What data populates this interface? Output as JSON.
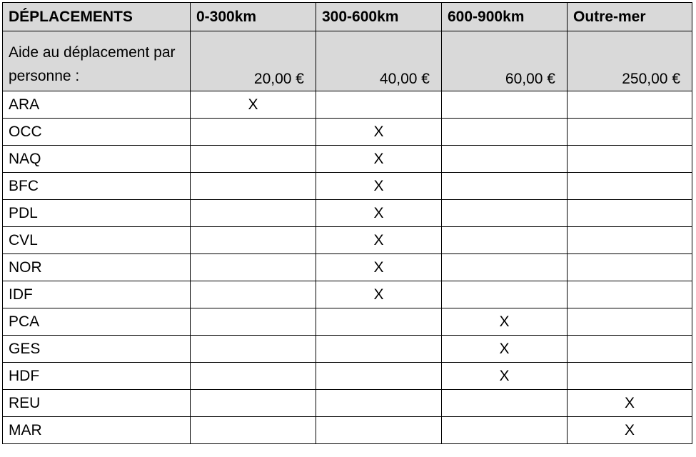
{
  "headers": [
    "DÉPLACEMENTS",
    "0-300km",
    "300-600km",
    "600-900km",
    "Outre-mer"
  ],
  "aid_row": {
    "label": "Aide au déplacement par personne :",
    "amounts": [
      "20,00  €",
      "40,00  €",
      "60,00  €",
      "250,00  €"
    ]
  },
  "rows": [
    {
      "region": "ARA",
      "cells": [
        "X",
        "",
        "",
        ""
      ]
    },
    {
      "region": "OCC",
      "cells": [
        "",
        "X",
        "",
        ""
      ]
    },
    {
      "region": "NAQ",
      "cells": [
        "",
        "X",
        "",
        ""
      ]
    },
    {
      "region": "BFC",
      "cells": [
        "",
        "X",
        "",
        ""
      ]
    },
    {
      "region": "PDL",
      "cells": [
        "",
        "X",
        "",
        ""
      ]
    },
    {
      "region": "CVL",
      "cells": [
        "",
        "X",
        "",
        ""
      ]
    },
    {
      "region": "NOR",
      "cells": [
        "",
        "X",
        "",
        ""
      ]
    },
    {
      "region": "IDF",
      "cells": [
        "",
        "X",
        "",
        ""
      ]
    },
    {
      "region": "PCA",
      "cells": [
        "",
        "",
        "X",
        ""
      ]
    },
    {
      "region": "GES",
      "cells": [
        "",
        "",
        "X",
        ""
      ]
    },
    {
      "region": "HDF",
      "cells": [
        "",
        "",
        "X",
        ""
      ]
    },
    {
      "region": "REU",
      "cells": [
        "",
        "",
        "",
        "X"
      ]
    },
    {
      "region": "MAR",
      "cells": [
        "",
        "",
        "",
        "X"
      ]
    }
  ],
  "colors": {
    "header_bg": "#d9d9d9",
    "border": "#000000"
  }
}
